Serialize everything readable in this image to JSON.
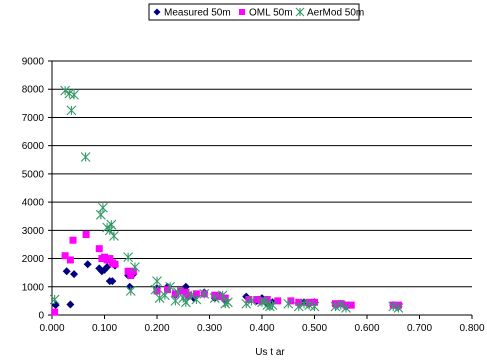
{
  "chart_data": {
    "type": "scatter",
    "title": "",
    "xlabel": "Us t ar",
    "ylabel": "",
    "xlim": [
      0,
      0.8
    ],
    "ylim": [
      0,
      9000
    ],
    "xticks": [
      0,
      0.1,
      0.2,
      0.3,
      0.4,
      0.5,
      0.6,
      0.7,
      0.8
    ],
    "xtick_labels": [
      "0.000",
      "0.100",
      "0.200",
      "0.300",
      "0.400",
      "0.500",
      "0.600",
      "0.700",
      "0.800"
    ],
    "yticks": [
      0,
      1000,
      2000,
      3000,
      4000,
      5000,
      6000,
      7000,
      8000,
      9000
    ],
    "ytick_labels": [
      "0",
      "1000",
      "2000",
      "3000",
      "4000",
      "5000",
      "6000",
      "7000",
      "8000",
      "9000"
    ],
    "grid": "y-major",
    "legend_position": "top-center",
    "series": [
      {
        "name": "Measured 50m",
        "marker": "diamond",
        "color": "#000080",
        "points": [
          [
            0.007,
            350
          ],
          [
            0.028,
            1550
          ],
          [
            0.035,
            370
          ],
          [
            0.042,
            1450
          ],
          [
            0.068,
            1800
          ],
          [
            0.09,
            1650
          ],
          [
            0.095,
            1550
          ],
          [
            0.1,
            1600
          ],
          [
            0.105,
            1700
          ],
          [
            0.11,
            1200
          ],
          [
            0.115,
            1200
          ],
          [
            0.12,
            1750
          ],
          [
            0.145,
            1400
          ],
          [
            0.148,
            1000
          ],
          [
            0.155,
            1450
          ],
          [
            0.2,
            950
          ],
          [
            0.22,
            1000
          ],
          [
            0.235,
            700
          ],
          [
            0.25,
            850
          ],
          [
            0.255,
            1000
          ],
          [
            0.26,
            650
          ],
          [
            0.27,
            600
          ],
          [
            0.29,
            800
          ],
          [
            0.31,
            600
          ],
          [
            0.32,
            700
          ],
          [
            0.33,
            500
          ],
          [
            0.37,
            650
          ],
          [
            0.39,
            500
          ],
          [
            0.4,
            600
          ],
          [
            0.41,
            400
          ],
          [
            0.42,
            450
          ],
          [
            0.47,
            400
          ],
          [
            0.48,
            450
          ],
          [
            0.49,
            400
          ],
          [
            0.5,
            450
          ],
          [
            0.54,
            350
          ],
          [
            0.55,
            400
          ],
          [
            0.56,
            300
          ],
          [
            0.65,
            350
          ],
          [
            0.66,
            300
          ]
        ]
      },
      {
        "name": "OML 50m",
        "marker": "square",
        "color": "#FF00FF",
        "points": [
          [
            0.005,
            100
          ],
          [
            0.025,
            2100
          ],
          [
            0.035,
            1950
          ],
          [
            0.04,
            2650
          ],
          [
            0.065,
            2850
          ],
          [
            0.09,
            2350
          ],
          [
            0.095,
            2000
          ],
          [
            0.1,
            2050
          ],
          [
            0.105,
            1950
          ],
          [
            0.11,
            2000
          ],
          [
            0.115,
            1850
          ],
          [
            0.12,
            1800
          ],
          [
            0.145,
            1550
          ],
          [
            0.15,
            1400
          ],
          [
            0.155,
            1550
          ],
          [
            0.2,
            850
          ],
          [
            0.22,
            900
          ],
          [
            0.235,
            750
          ],
          [
            0.245,
            850
          ],
          [
            0.255,
            800
          ],
          [
            0.26,
            700
          ],
          [
            0.275,
            750
          ],
          [
            0.29,
            750
          ],
          [
            0.31,
            700
          ],
          [
            0.32,
            650
          ],
          [
            0.33,
            600
          ],
          [
            0.375,
            550
          ],
          [
            0.39,
            550
          ],
          [
            0.4,
            500
          ],
          [
            0.41,
            550
          ],
          [
            0.43,
            500
          ],
          [
            0.455,
            500
          ],
          [
            0.47,
            450
          ],
          [
            0.49,
            450
          ],
          [
            0.5,
            450
          ],
          [
            0.54,
            400
          ],
          [
            0.55,
            400
          ],
          [
            0.56,
            350
          ],
          [
            0.57,
            350
          ],
          [
            0.65,
            350
          ],
          [
            0.66,
            350
          ]
        ]
      },
      {
        "name": "AerMod 50m",
        "marker": "star",
        "color": "#339966",
        "points": [
          [
            0.005,
            550
          ],
          [
            0.025,
            7950
          ],
          [
            0.033,
            7850
          ],
          [
            0.037,
            7250
          ],
          [
            0.042,
            7800
          ],
          [
            0.064,
            5600
          ],
          [
            0.093,
            3550
          ],
          [
            0.097,
            3800
          ],
          [
            0.105,
            3100
          ],
          [
            0.11,
            3000
          ],
          [
            0.113,
            3200
          ],
          [
            0.118,
            2800
          ],
          [
            0.145,
            2050
          ],
          [
            0.15,
            850
          ],
          [
            0.158,
            1700
          ],
          [
            0.197,
            900
          ],
          [
            0.2,
            1200
          ],
          [
            0.205,
            600
          ],
          [
            0.215,
            700
          ],
          [
            0.225,
            1000
          ],
          [
            0.235,
            500
          ],
          [
            0.24,
            800
          ],
          [
            0.25,
            600
          ],
          [
            0.255,
            450
          ],
          [
            0.265,
            700
          ],
          [
            0.275,
            550
          ],
          [
            0.29,
            750
          ],
          [
            0.31,
            600
          ],
          [
            0.325,
            700
          ],
          [
            0.33,
            400
          ],
          [
            0.335,
            450
          ],
          [
            0.37,
            400
          ],
          [
            0.38,
            500
          ],
          [
            0.4,
            450
          ],
          [
            0.405,
            500
          ],
          [
            0.41,
            350
          ],
          [
            0.415,
            300
          ],
          [
            0.42,
            350
          ],
          [
            0.45,
            400
          ],
          [
            0.47,
            300
          ],
          [
            0.48,
            400
          ],
          [
            0.49,
            350
          ],
          [
            0.5,
            300
          ],
          [
            0.54,
            300
          ],
          [
            0.55,
            350
          ],
          [
            0.56,
            250
          ],
          [
            0.65,
            300
          ],
          [
            0.66,
            250
          ]
        ]
      }
    ]
  }
}
